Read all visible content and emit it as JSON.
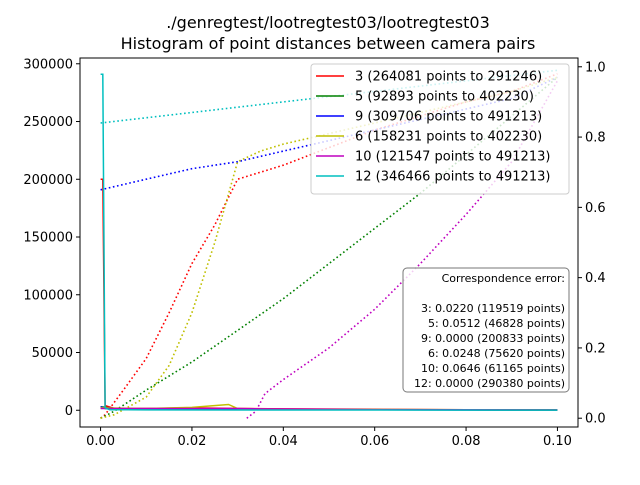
{
  "chart_data": {
    "type": "line",
    "title_line1": "./genregtest/lootregtest03/lootregtest03",
    "title_line2": "Histogram of point distances between camera pairs",
    "xlabel": "",
    "ylabel_left": "",
    "ylabel_right": "",
    "xlim": [
      -0.0045,
      0.1045
    ],
    "ylim_left": [
      -14500,
      305000
    ],
    "ylim_right": [
      -0.025,
      1.025
    ],
    "x_ticks": [
      {
        "value": 0.0,
        "label": "0.00"
      },
      {
        "value": 0.02,
        "label": "0.02"
      },
      {
        "value": 0.04,
        "label": "0.04"
      },
      {
        "value": 0.06,
        "label": "0.06"
      },
      {
        "value": 0.08,
        "label": "0.08"
      },
      {
        "value": 0.1,
        "label": "0.10"
      }
    ],
    "y_left_ticks": [
      {
        "value": 0,
        "label": "0"
      },
      {
        "value": 50000,
        "label": "50000"
      },
      {
        "value": 100000,
        "label": "100000"
      },
      {
        "value": 150000,
        "label": "150000"
      },
      {
        "value": 200000,
        "label": "200000"
      },
      {
        "value": 250000,
        "label": "250000"
      },
      {
        "value": 300000,
        "label": "300000"
      }
    ],
    "y_right_ticks": [
      {
        "value": 0.0,
        "label": "0.0"
      },
      {
        "value": 0.2,
        "label": "0.2"
      },
      {
        "value": 0.4,
        "label": "0.4"
      },
      {
        "value": 0.6,
        "label": "0.6"
      },
      {
        "value": 0.8,
        "label": "0.8"
      },
      {
        "value": 1.0,
        "label": "1.0"
      }
    ],
    "legend_position": "top-right",
    "series": [
      {
        "name": "3 (264081 points to 291246)",
        "color": "#ff0000",
        "histogram": [
          [
            0.0,
            200000
          ],
          [
            0.0005,
            200000
          ],
          [
            0.001,
            4000
          ],
          [
            0.003,
            1500
          ],
          [
            0.01,
            1500
          ],
          [
            0.02,
            2000
          ],
          [
            0.03,
            1500
          ],
          [
            0.04,
            1200
          ],
          [
            0.06,
            800
          ],
          [
            0.08,
            500
          ],
          [
            0.1,
            200
          ]
        ],
        "cumulative": [
          [
            0.0,
            0.0
          ],
          [
            0.001,
            0.01
          ],
          [
            0.005,
            0.08
          ],
          [
            0.01,
            0.17
          ],
          [
            0.015,
            0.3
          ],
          [
            0.02,
            0.44
          ],
          [
            0.025,
            0.55
          ],
          [
            0.03,
            0.68
          ],
          [
            0.035,
            0.7
          ],
          [
            0.04,
            0.72
          ],
          [
            0.05,
            0.77
          ],
          [
            0.06,
            0.82
          ],
          [
            0.07,
            0.86
          ],
          [
            0.08,
            0.9
          ],
          [
            0.09,
            0.93
          ],
          [
            0.1,
            0.98
          ]
        ]
      },
      {
        "name": "5 (92893 points to 402230)",
        "color": "#008000",
        "histogram": [
          [
            0.0,
            3000
          ],
          [
            0.002,
            2000
          ],
          [
            0.005,
            1200
          ],
          [
            0.02,
            800
          ],
          [
            0.04,
            600
          ],
          [
            0.06,
            400
          ],
          [
            0.08,
            300
          ],
          [
            0.1,
            100
          ]
        ],
        "cumulative": [
          [
            0.0,
            0.0
          ],
          [
            0.003,
            0.02
          ],
          [
            0.01,
            0.08
          ],
          [
            0.02,
            0.16
          ],
          [
            0.03,
            0.25
          ],
          [
            0.04,
            0.34
          ],
          [
            0.05,
            0.44
          ],
          [
            0.06,
            0.54
          ],
          [
            0.07,
            0.64
          ],
          [
            0.08,
            0.75
          ],
          [
            0.09,
            0.86
          ],
          [
            0.1,
            0.97
          ]
        ]
      },
      {
        "name": "9 (309706 points to 491213)",
        "color": "#0000ff",
        "histogram": [
          [
            0.0,
            3000
          ],
          [
            0.001,
            1500
          ],
          [
            0.01,
            800
          ],
          [
            0.03,
            600
          ],
          [
            0.06,
            400
          ],
          [
            0.1,
            200
          ]
        ],
        "cumulative": [
          [
            0.0,
            0.65
          ],
          [
            0.01,
            0.68
          ],
          [
            0.02,
            0.71
          ],
          [
            0.03,
            0.73
          ],
          [
            0.04,
            0.76
          ],
          [
            0.05,
            0.79
          ],
          [
            0.06,
            0.82
          ],
          [
            0.07,
            0.85
          ],
          [
            0.08,
            0.88
          ],
          [
            0.09,
            0.91
          ],
          [
            0.1,
            0.97
          ]
        ]
      },
      {
        "name": "6 (158231 points to 402230)",
        "color": "#bfbf00",
        "histogram": [
          [
            0.0,
            2000
          ],
          [
            0.01,
            1500
          ],
          [
            0.02,
            2500
          ],
          [
            0.028,
            5000
          ],
          [
            0.03,
            1500
          ],
          [
            0.04,
            800
          ],
          [
            0.1,
            200
          ]
        ],
        "cumulative": [
          [
            0.0,
            0.0
          ],
          [
            0.003,
            0.01
          ],
          [
            0.01,
            0.06
          ],
          [
            0.015,
            0.15
          ],
          [
            0.02,
            0.3
          ],
          [
            0.025,
            0.5
          ],
          [
            0.03,
            0.73
          ],
          [
            0.035,
            0.76
          ],
          [
            0.04,
            0.78
          ],
          [
            0.05,
            0.81
          ],
          [
            0.06,
            0.84
          ],
          [
            0.07,
            0.87
          ],
          [
            0.08,
            0.9
          ],
          [
            0.09,
            0.93
          ],
          [
            0.1,
            0.97
          ]
        ]
      },
      {
        "name": "10 (121547 points to 491213)",
        "color": "#bf00bf",
        "histogram": [
          [
            0.0,
            1500
          ],
          [
            0.03,
            1500
          ],
          [
            0.035,
            1200
          ],
          [
            0.06,
            600
          ],
          [
            0.1,
            200
          ]
        ],
        "cumulative": [
          [
            0.032,
            0.0
          ],
          [
            0.034,
            0.02
          ],
          [
            0.036,
            0.07
          ],
          [
            0.04,
            0.11
          ],
          [
            0.05,
            0.2
          ],
          [
            0.06,
            0.31
          ],
          [
            0.07,
            0.44
          ],
          [
            0.08,
            0.58
          ],
          [
            0.09,
            0.73
          ],
          [
            0.1,
            0.96
          ]
        ]
      },
      {
        "name": "12 (346466 points to 491213)",
        "color": "#00bfbf",
        "histogram": [
          [
            0.0,
            291000
          ],
          [
            0.0005,
            291000
          ],
          [
            0.001,
            2000
          ],
          [
            0.002,
            500
          ],
          [
            0.01,
            300
          ],
          [
            0.1,
            100
          ]
        ],
        "cumulative": [
          [
            0.0,
            0.84
          ],
          [
            0.02,
            0.87
          ],
          [
            0.04,
            0.9
          ],
          [
            0.06,
            0.93
          ],
          [
            0.08,
            0.96
          ],
          [
            0.1,
            0.99
          ]
        ]
      }
    ],
    "annotation": {
      "title": "Correspondence error:",
      "lines": [
        "3: 0.0220 (119519 points)",
        "5: 0.0512 (46828 points)",
        "9: 0.0000 (200833 points)",
        "6: 0.0248 (75620 points)",
        "10: 0.0646 (61165 points)",
        "12: 0.0000 (290380 points)"
      ]
    }
  }
}
